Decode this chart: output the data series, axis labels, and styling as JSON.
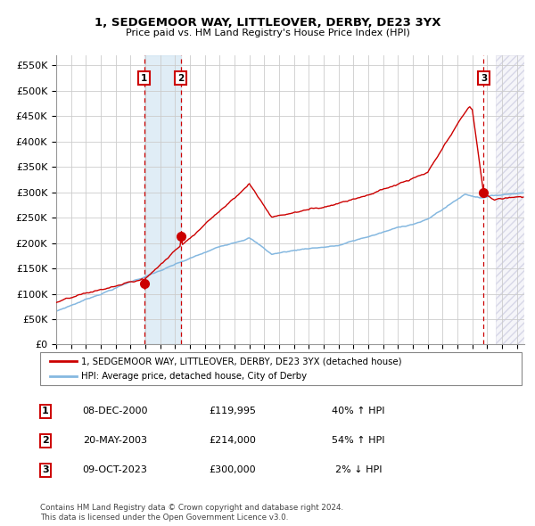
{
  "title": "1, SEDGEMOOR WAY, LITTLEOVER, DERBY, DE23 3YX",
  "subtitle": "Price paid vs. HM Land Registry's House Price Index (HPI)",
  "ylim": [
    0,
    570000
  ],
  "yticks": [
    0,
    50000,
    100000,
    150000,
    200000,
    250000,
    300000,
    350000,
    400000,
    450000,
    500000,
    550000
  ],
  "ytick_labels": [
    "£0",
    "£50K",
    "£100K",
    "£150K",
    "£200K",
    "£250K",
    "£300K",
    "£350K",
    "£400K",
    "£450K",
    "£500K",
    "£550K"
  ],
  "xmin": 1995.0,
  "xmax": 2026.5,
  "sale_dates": [
    2000.92,
    2003.38,
    2023.77
  ],
  "sale_prices": [
    119995,
    214000,
    300000
  ],
  "sale_labels": [
    "1",
    "2",
    "3"
  ],
  "hpi_color": "#85b8e0",
  "price_color": "#cc0000",
  "background_color": "#ffffff",
  "grid_color": "#cccccc",
  "shaded_x1": 2000.92,
  "shaded_x2": 2003.38,
  "hatch_x_start": 2024.58,
  "legend_entries": [
    "1, SEDGEMOOR WAY, LITTLEOVER, DERBY, DE23 3YX (detached house)",
    "HPI: Average price, detached house, City of Derby"
  ],
  "table_data": [
    {
      "num": "1",
      "date": "08-DEC-2000",
      "price": "£119,995",
      "hpi": "40% ↑ HPI"
    },
    {
      "num": "2",
      "date": "20-MAY-2003",
      "price": "£214,000",
      "hpi": "54% ↑ HPI"
    },
    {
      "num": "3",
      "date": "09-OCT-2023",
      "price": "£300,000",
      "hpi": "2% ↓ HPI"
    }
  ],
  "footer": "Contains HM Land Registry data © Crown copyright and database right 2024.\nThis data is licensed under the Open Government Licence v3.0."
}
